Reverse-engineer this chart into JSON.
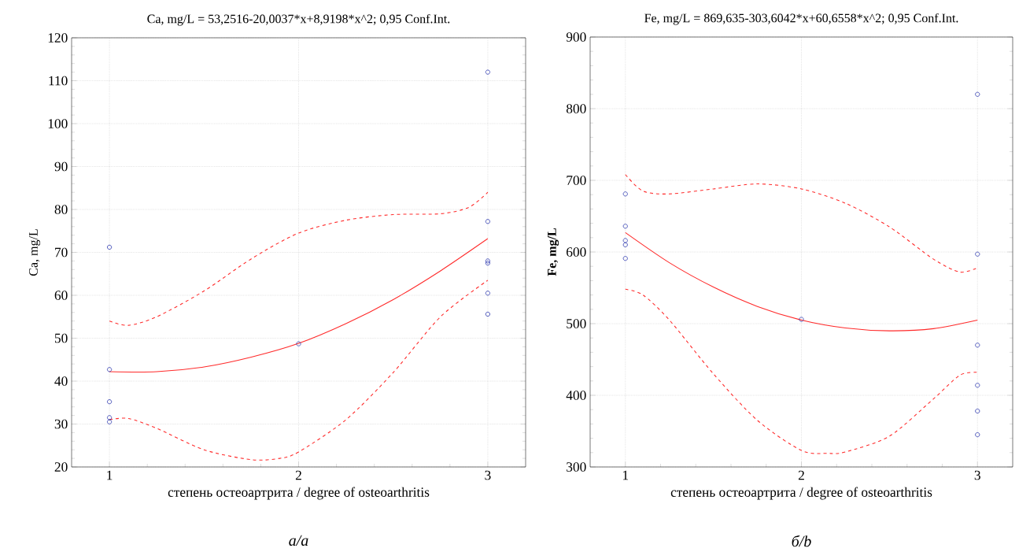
{
  "chart_data": [
    {
      "type": "scatter",
      "title": "Ca, mg/L = 53,2516-20,0037*x+8,9198*x^2; 0,95 Conf.Int.",
      "xlabel": "степень остеоартрита / degree of osteoarthritis",
      "ylabel": "Ca,  mg/L",
      "annotations": [
        "a/a"
      ],
      "xlim": [
        0.8,
        3.2
      ],
      "xticks": [
        1,
        2,
        3
      ],
      "ylim": [
        20,
        120
      ],
      "yticks": [
        20,
        30,
        40,
        50,
        60,
        70,
        80,
        90,
        100,
        110,
        120
      ],
      "grid": true,
      "series": [
        {
          "marker": "circle",
          "color": "#2e3ab0",
          "x": [
            1,
            1,
            1,
            1,
            1,
            2,
            3,
            3,
            3,
            3,
            3,
            3
          ],
          "values": [
            71.2,
            42.7,
            35.2,
            31.5,
            30.5,
            48.7,
            112,
            77.2,
            68,
            67.5,
            60.5,
            55.6
          ]
        },
        {
          "type": "line",
          "marker": "none",
          "line_style": "solid",
          "color": "#ff2a2a",
          "x": [
            1,
            1.25,
            1.5,
            1.75,
            2,
            2.25,
            2.5,
            2.75,
            3
          ],
          "values": [
            42.2,
            42.2,
            43.3,
            45.6,
            48.8,
            53.4,
            59,
            65.7,
            73.2
          ]
        },
        {
          "type": "line",
          "marker": "none",
          "line_style": "dashed",
          "color": "#ff2a2a",
          "x": [
            1,
            1.1,
            1.25,
            1.5,
            1.75,
            2,
            2.25,
            2.5,
            2.75,
            2.9,
            3
          ],
          "values": [
            54,
            53,
            55,
            61,
            68.5,
            74.5,
            77.5,
            78.8,
            79,
            80.5,
            84
          ]
        },
        {
          "type": "line",
          "marker": "none",
          "line_style": "dashed",
          "color": "#ff2a2a",
          "x": [
            1,
            1.1,
            1.25,
            1.5,
            1.75,
            1.9,
            2,
            2.25,
            2.5,
            2.75,
            3
          ],
          "values": [
            31,
            31.3,
            29,
            24,
            21.7,
            22,
            23.5,
            31,
            42,
            55,
            63.5
          ]
        }
      ]
    },
    {
      "type": "scatter",
      "title": "Fe, mg/L = 869,635-303,6042*x+60,6558*x^2; 0,95 Conf.Int.",
      "xlabel": "степень остеоартрита / degree of osteoarthritis",
      "ylabel": "**Fe, mg/L**",
      "annotations": [
        "б/b"
      ],
      "xlim": [
        0.8,
        3.2
      ],
      "xticks": [
        1,
        2,
        3
      ],
      "ylim": [
        300,
        900
      ],
      "yticks": [
        300,
        400,
        500,
        600,
        700,
        800,
        900
      ],
      "grid": true,
      "series": [
        {
          "marker": "circle",
          "color": "#2e3ab0",
          "x": [
            1,
            1,
            1,
            1,
            1,
            2,
            3,
            3,
            3,
            3,
            3,
            3
          ],
          "values": [
            681,
            636,
            616,
            610,
            591,
            506,
            820,
            597,
            470,
            414,
            378,
            345
          ]
        },
        {
          "type": "line",
          "marker": "none",
          "line_style": "solid",
          "color": "#ff2a2a",
          "x": [
            1,
            1.25,
            1.5,
            1.75,
            2,
            2.25,
            2.5,
            2.75,
            3
          ],
          "values": [
            627,
            585,
            551,
            524,
            505,
            494,
            490,
            493,
            505
          ]
        },
        {
          "type": "line",
          "marker": "none",
          "line_style": "dashed",
          "color": "#ff2a2a",
          "x": [
            1,
            1.1,
            1.25,
            1.5,
            1.75,
            2,
            2.25,
            2.5,
            2.75,
            2.9,
            3
          ],
          "values": [
            708,
            685,
            681,
            688,
            695,
            688,
            668,
            635,
            590,
            572,
            578
          ]
        },
        {
          "type": "line",
          "marker": "none",
          "line_style": "dashed",
          "color": "#ff2a2a",
          "x": [
            1,
            1.1,
            1.25,
            1.5,
            1.75,
            2,
            2.15,
            2.25,
            2.5,
            2.75,
            2.9,
            3
          ],
          "values": [
            548,
            540,
            505,
            430,
            365,
            323,
            319,
            321,
            343,
            395,
            428,
            432
          ]
        }
      ]
    }
  ]
}
